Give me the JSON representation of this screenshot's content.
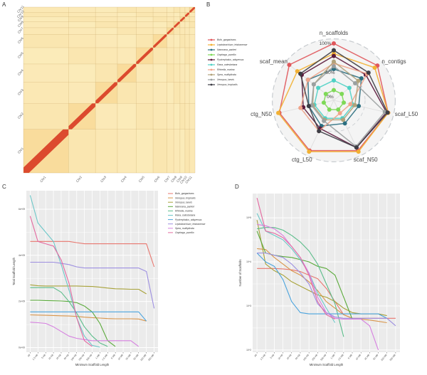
{
  "panels": {
    "a_letter": "A",
    "b_letter": "B",
    "c_letter": "C",
    "d_letter": "D"
  },
  "chart_data": [
    {
      "id": "A",
      "type": "heatmap",
      "title": "",
      "description": "Hi-C chromosome contact heatmap",
      "chromosomes": [
        "Chr1",
        "Chr2",
        "Chr3",
        "Chr4",
        "Chr5",
        "Chr6",
        "Chr7",
        "Chr8",
        "Chr9",
        "Chr10",
        "Chr11"
      ],
      "relative_sizes": [
        72,
        43,
        35,
        30,
        27,
        22,
        11,
        10,
        8,
        7,
        9
      ],
      "colors": {
        "low": "#fdf3c9",
        "mid": "#f6c977",
        "high": "#d83a22"
      }
    },
    {
      "id": "B",
      "type": "radar",
      "axes": [
        "n_scaffolds",
        "n_contigs",
        "scaf_L50",
        "scaf_N50",
        "ctg_L50",
        "ctg_N50",
        "scaf_mean"
      ],
      "ring_labels": [
        "0%",
        "50%",
        "100%"
      ],
      "range": [
        0,
        100
      ],
      "series": [
        {
          "name": "Bufo_gargarizans",
          "color": "#e0575b",
          "values": [
            100,
            98,
            98,
            98,
            98,
            98,
            100
          ]
        },
        {
          "name": "Leptobrachium_leishanense",
          "color": "#f2b134",
          "values": [
            82,
            92,
            98,
            100,
            100,
            100,
            82
          ]
        },
        {
          "name": "Nanorana_parkeri",
          "color": "#2b6f80",
          "values": [
            55,
            62,
            45,
            45,
            50,
            45,
            58
          ]
        },
        {
          "name": "Oophaga_pumilio",
          "color": "#7ed957",
          "values": [
            18,
            18,
            18,
            18,
            18,
            18,
            18
          ]
        },
        {
          "name": "Pyxicephalus_adspersus",
          "color": "#5b1a3c",
          "values": [
            78,
            72,
            95,
            92,
            55,
            55,
            72
          ]
        },
        {
          "name": "Rana_catesbeiana",
          "color": "#4fd1c5",
          "values": [
            35,
            35,
            35,
            35,
            35,
            35,
            35
          ]
        },
        {
          "name": "Rhinella_marina",
          "color": "#f0a48a",
          "values": [
            65,
            75,
            30,
            25,
            60,
            60,
            58
          ]
        },
        {
          "name": "Spea_multiplicata",
          "color": "#b1a27a",
          "values": [
            68,
            55,
            38,
            38,
            38,
            38,
            45
          ]
        },
        {
          "name": "Xenopus_laevis",
          "color": "#9aa0a0",
          "values": [
            60,
            48,
            92,
            90,
            40,
            40,
            45
          ]
        },
        {
          "name": "Xenopus_tropicalis",
          "color": "#3d3d45",
          "values": [
            88,
            78,
            97,
            92,
            60,
            45,
            75
          ]
        }
      ]
    },
    {
      "id": "C",
      "type": "line",
      "title": "",
      "xlabel": "Minimum Scaffold Length",
      "ylabel": "Total Scaffold Length",
      "categories": [
        "All",
        "2.5 KB",
        "5 KB",
        "10 KB",
        "25 KB",
        "50 KB",
        "100 KB",
        "250 KB",
        "500 KB",
        "1 MB",
        "2.5 MB",
        "5 MB",
        "10 MB",
        "25 MB",
        "50 MB",
        "100 MB",
        "250 MB"
      ],
      "yticks": [
        "0e+00",
        "2e+09",
        "4e+09",
        "6e+09"
      ],
      "ylim": [
        -200000000.0,
        6800000000.0
      ],
      "legend": "right",
      "series": [
        {
          "name": "Bufo_gargarizans",
          "color": "#e8776f",
          "values": [
            4600000000.0,
            4600000000.0,
            4600000000.0,
            4600000000.0,
            4600000000.0,
            4600000000.0,
            4550000000.0,
            4500000000.0,
            4500000000.0,
            4500000000.0,
            4500000000.0,
            4500000000.0,
            4500000000.0,
            4500000000.0,
            4500000000.0,
            4500000000.0,
            3500000000.0
          ]
        },
        {
          "name": "Xenopus_tropicalis",
          "color": "#d9954a",
          "values": [
            1420000000.0,
            1410000000.0,
            1400000000.0,
            1390000000.0,
            1380000000.0,
            1370000000.0,
            1350000000.0,
            1320000000.0,
            1300000000.0,
            1280000000.0,
            1260000000.0,
            1250000000.0,
            1250000000.0,
            1250000000.0,
            1240000000.0,
            1150000000.0,
            null
          ]
        },
        {
          "name": "Xenopus_laevis",
          "color": "#a8a23a",
          "values": [
            2720000000.0,
            2680000000.0,
            2670000000.0,
            2670000000.0,
            2670000000.0,
            2670000000.0,
            2670000000.0,
            2660000000.0,
            2650000000.0,
            2620000000.0,
            2580000000.0,
            2550000000.0,
            2540000000.0,
            2530000000.0,
            2530000000.0,
            2330000000.0,
            null
          ]
        },
        {
          "name": "Nanorana_parkeri",
          "color": "#5aaa3a",
          "values": [
            2050000000.0,
            2050000000.0,
            2040000000.0,
            2030000000.0,
            2020000000.0,
            2000000000.0,
            1950000000.0,
            1800000000.0,
            1550000000.0,
            1050000000.0,
            300000000.0,
            50000000.0,
            null,
            null,
            null,
            null,
            null
          ]
        },
        {
          "name": "Rhinella_marina",
          "color": "#5bbd8a",
          "values": [
            2600000000.0,
            2600000000.0,
            2600000000.0,
            2600000000.0,
            2400000000.0,
            2000000000.0,
            1500000000.0,
            900000000.0,
            500000000.0,
            200000000.0,
            50000000.0,
            null,
            null,
            null,
            null,
            null,
            null
          ]
        },
        {
          "name": "Rana_catesbeiana",
          "color": "#6cc7c8",
          "values": [
            6600000000.0,
            5400000000.0,
            5000000000.0,
            4600000000.0,
            3600000000.0,
            2500000000.0,
            1300000000.0,
            500000000.0,
            100000000.0,
            20000000.0,
            null,
            null,
            null,
            null,
            null,
            null,
            null
          ]
        },
        {
          "name": "Pyxicephalus_adspersus",
          "color": "#4aa3dd",
          "values": [
            1550000000.0,
            1550000000.0,
            1550000000.0,
            1550000000.0,
            1550000000.0,
            1550000000.0,
            1550000000.0,
            1550000000.0,
            1550000000.0,
            1550000000.0,
            1550000000.0,
            1550000000.0,
            1550000000.0,
            1550000000.0,
            1550000000.0,
            1150000000.0,
            null
          ]
        },
        {
          "name": "Leptobrachium_leishanense",
          "color": "#9d8fe0",
          "values": [
            3700000000.0,
            3700000000.0,
            3700000000.0,
            3700000000.0,
            3650000000.0,
            3600000000.0,
            3500000000.0,
            3450000000.0,
            3450000000.0,
            3450000000.0,
            3450000000.0,
            3450000000.0,
            3450000000.0,
            3450000000.0,
            3450000000.0,
            3300000000.0,
            1700000000.0
          ]
        },
        {
          "name": "Spea_multiplicata",
          "color": "#d67fe0",
          "values": [
            1100000000.0,
            1080000000.0,
            1050000000.0,
            900000000.0,
            700000000.0,
            500000000.0,
            400000000.0,
            350000000.0,
            300000000.0,
            300000000.0,
            300000000.0,
            300000000.0,
            300000000.0,
            300000000.0,
            50000000.0,
            null,
            null
          ]
        },
        {
          "name": "Oophaga_pumilio",
          "color": "#e46aa0",
          "values": [
            5700000000.0,
            4600000000.0,
            4500000000.0,
            4400000000.0,
            3800000000.0,
            2800000000.0,
            1300000000.0,
            300000000.0,
            50000000.0,
            null,
            null,
            null,
            null,
            null,
            null,
            null,
            null
          ]
        }
      ]
    },
    {
      "id": "D",
      "type": "line",
      "title": "",
      "xlabel": "Minimum Scaffold Length",
      "ylabel": "Number of Scaffolds",
      "yscale": "log10",
      "categories": [
        "All",
        "2.5 KB",
        "5 KB",
        "10 KB",
        "25 KB",
        "50 KB",
        "100 KB",
        "250 KB",
        "500 KB",
        "1 MB",
        "2.5 MB",
        "5 MB",
        "10 MB",
        "25 MB",
        "50 MB",
        "100 MB",
        "250 MB"
      ],
      "yticks": [
        "10^2",
        "10^3",
        "10^4",
        "10^5"
      ],
      "ylim_log10": [
        1.95,
        5.55
      ],
      "series": [
        {
          "name": "Bufo_gargarizans",
          "color": "#e8776f",
          "values_log10": [
            3.85,
            3.85,
            3.85,
            3.84,
            3.82,
            3.78,
            3.7,
            3.62,
            3.4,
            3.1,
            2.8,
            2.72,
            2.72,
            2.72,
            2.72,
            2.72,
            2.72
          ]
        },
        {
          "name": "Xenopus_tropicalis",
          "color": "#d9954a",
          "values_log10": [
            4.3,
            4.28,
            4.1,
            3.95,
            3.8,
            3.7,
            3.55,
            3.35,
            3.1,
            2.95,
            2.8,
            2.72,
            2.7,
            2.68,
            2.65,
            2.62,
            null
          ]
        },
        {
          "name": "Xenopus_laevis",
          "color": "#a8a23a",
          "values_log10": [
            4.95,
            3.95,
            3.8,
            3.7,
            3.55,
            3.45,
            3.35,
            3.25,
            3.2,
            3.1,
            2.95,
            2.85,
            2.82,
            2.82,
            2.82,
            2.78,
            null
          ]
        },
        {
          "name": "Nanorana_parkeri",
          "color": "#5aaa3a",
          "values_log10": [
            4.7,
            4.2,
            4.15,
            4.12,
            4.1,
            4.05,
            4.0,
            3.9,
            3.85,
            3.7,
            3.2,
            2.7,
            null,
            null,
            null,
            null,
            null
          ]
        },
        {
          "name": "Rhinella_marina",
          "color": "#5bbd8a",
          "values_log10": [
            4.75,
            4.78,
            4.78,
            4.72,
            4.6,
            4.45,
            4.25,
            3.95,
            3.5,
            3.05,
            2.3,
            null,
            null,
            null,
            null,
            null,
            null
          ]
        },
        {
          "name": "Rana_catesbeiana",
          "color": "#6cc7c8",
          "values_log10": [
            5.1,
            4.7,
            4.6,
            4.5,
            4.3,
            4.05,
            3.75,
            3.3,
            2.95,
            2.62,
            null,
            null,
            null,
            null,
            null,
            null,
            null
          ]
        },
        {
          "name": "Pyxicephalus_adspersus",
          "color": "#4aa3dd",
          "values_log10": [
            4.2,
            4.0,
            3.9,
            3.6,
            3.1,
            2.85,
            2.82,
            2.82,
            2.82,
            2.82,
            2.82,
            2.82,
            2.82,
            2.82,
            2.82,
            2.72,
            null
          ]
        },
        {
          "name": "Leptobrachium_leishanense",
          "color": "#9d8fe0",
          "values_log10": [
            4.2,
            4.2,
            4.15,
            4.1,
            3.95,
            3.75,
            3.5,
            3.05,
            2.85,
            2.75,
            2.72,
            2.72,
            2.72,
            2.72,
            2.72,
            2.72,
            2.55
          ]
        },
        {
          "name": "Spea_multiplicata",
          "color": "#d67fe0",
          "values_log10": [
            4.85,
            4.82,
            4.75,
            4.6,
            4.35,
            4.1,
            3.75,
            3.2,
            2.85,
            2.72,
            2.7,
            2.7,
            2.7,
            2.55,
            2.0,
            null,
            null
          ]
        },
        {
          "name": "Oophaga_pumilio",
          "color": "#e46aa0",
          "values_log10": [
            5.45,
            4.7,
            4.65,
            4.55,
            4.35,
            4.1,
            3.7,
            3.1,
            2.8,
            2.7,
            null,
            null,
            null,
            null,
            null,
            null,
            null
          ]
        }
      ]
    }
  ]
}
